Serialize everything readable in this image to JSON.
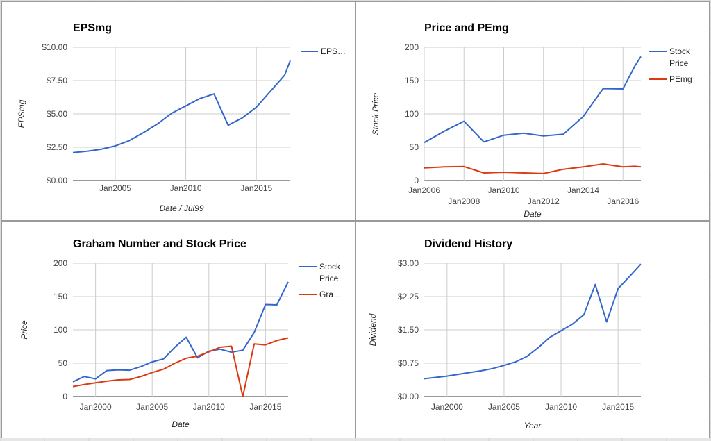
{
  "colors": {
    "blue": "#3366cc",
    "red": "#dc3912",
    "grid": "#cccccc",
    "axis": "#333333"
  },
  "chart_data": [
    {
      "type": "line",
      "title": "EPSmg",
      "xlabel": "Date / Jul99",
      "ylabel": "EPSmg",
      "xlim": [
        2002.0,
        2017.4
      ],
      "ylim": [
        0,
        10
      ],
      "y_ticks": [
        0,
        2.5,
        5,
        7.5,
        10
      ],
      "y_tick_labels": [
        "$0.00",
        "$2.50",
        "$5.00",
        "$7.50",
        "$10.00"
      ],
      "x_ticks": [
        2005,
        2010,
        2015
      ],
      "x_tick_labels": [
        "Jan2005",
        "Jan2010",
        "Jan2015"
      ],
      "legend": "right",
      "series": [
        {
          "name": "EPS…",
          "color": "#3366cc",
          "x": [
            2002,
            2003,
            2004,
            2005,
            2006,
            2007,
            2008,
            2009,
            2010,
            2011,
            2012,
            2013,
            2014,
            2015,
            2016,
            2017,
            2017.4
          ],
          "y": [
            2.1,
            2.2,
            2.35,
            2.6,
            3.0,
            3.6,
            4.25,
            5.05,
            5.6,
            6.15,
            6.5,
            4.15,
            4.7,
            5.5,
            6.7,
            7.9,
            9.0
          ]
        }
      ]
    },
    {
      "type": "line",
      "title": "Price and PEmg",
      "xlabel": "Date",
      "ylabel": "Stock Price",
      "xlim": [
        2006.0,
        2016.9
      ],
      "ylim": [
        0,
        200
      ],
      "y_ticks": [
        0,
        50,
        100,
        150,
        200
      ],
      "y_tick_labels": [
        "0",
        "50",
        "100",
        "150",
        "200"
      ],
      "x_ticks": [
        2006,
        2008,
        2010,
        2012,
        2014,
        2016
      ],
      "x_tick_labels": [
        "Jan2006",
        "Jan2008",
        "Jan2010",
        "Jan2012",
        "Jan2014",
        "Jan2016"
      ],
      "legend": "right",
      "series": [
        {
          "name": "Stock Price",
          "color": "#3366cc",
          "x": [
            2006,
            2007,
            2008,
            2009,
            2010,
            2011,
            2012,
            2013,
            2014,
            2015,
            2016,
            2016.6,
            2016.9
          ],
          "y": [
            57,
            74,
            89,
            58,
            68,
            71,
            67,
            69.5,
            96,
            138,
            137.5,
            172,
            186
          ]
        },
        {
          "name": "PEmg",
          "color": "#dc3912",
          "x": [
            2006,
            2007,
            2008,
            2009,
            2010,
            2011,
            2012,
            2013,
            2014,
            2015,
            2016,
            2016.6,
            2016.9
          ],
          "y": [
            19,
            20.5,
            21,
            11.5,
            12.5,
            11.5,
            10.5,
            17,
            20.5,
            25,
            20.5,
            21.5,
            20.5
          ]
        }
      ]
    },
    {
      "type": "line",
      "title": "Graham Number and Stock Price",
      "xlabel": "Date",
      "ylabel": "Price",
      "xlim": [
        1998.0,
        2017.0
      ],
      "ylim": [
        0,
        200
      ],
      "y_ticks": [
        0,
        50,
        100,
        150,
        200
      ],
      "y_tick_labels": [
        "0",
        "50",
        "100",
        "150",
        "200"
      ],
      "x_ticks": [
        2000,
        2005,
        2010,
        2015
      ],
      "x_tick_labels": [
        "Jan2000",
        "Jan2005",
        "Jan2010",
        "Jan2015"
      ],
      "legend": "right",
      "series": [
        {
          "name": "Stock Price",
          "color": "#3366cc",
          "x": [
            1998,
            1999,
            2000,
            2001,
            2002,
            2003,
            2004,
            2005,
            2006,
            2007,
            2008,
            2009,
            2010,
            2011,
            2012,
            2013,
            2014,
            2015,
            2016,
            2017
          ],
          "y": [
            22,
            30,
            26.5,
            39,
            40,
            39.5,
            45,
            52,
            56.5,
            74,
            89,
            58,
            68,
            71,
            66.5,
            69.5,
            96,
            138,
            137.5,
            172
          ]
        },
        {
          "name": "Gra…",
          "color": "#dc3912",
          "x": [
            1998,
            1999,
            2000,
            2001,
            2002,
            2003,
            2004,
            2005,
            2006,
            2007,
            2008,
            2009,
            2010,
            2011,
            2012,
            2013,
            2014,
            2015,
            2016,
            2017
          ],
          "y": [
            15,
            18,
            20.5,
            23,
            25,
            25.5,
            30,
            36,
            41,
            50,
            57.5,
            60.5,
            67,
            74,
            75.5,
            0,
            79,
            77.5,
            84,
            88
          ]
        }
      ]
    },
    {
      "type": "line",
      "title": "Dividend History",
      "xlabel": "Year",
      "ylabel": "Dividend",
      "xlim": [
        1998.0,
        2017.0
      ],
      "ylim": [
        0,
        3
      ],
      "y_ticks": [
        0,
        0.75,
        1.5,
        2.25,
        3
      ],
      "y_tick_labels": [
        "$0.00",
        "$0.75",
        "$1.50",
        "$2.25",
        "$3.00"
      ],
      "x_ticks": [
        2000,
        2005,
        2010,
        2015
      ],
      "x_tick_labels": [
        "Jan2000",
        "Jan2005",
        "Jan2010",
        "Jan2015"
      ],
      "legend": "none",
      "series": [
        {
          "color": "#3366cc",
          "x": [
            1998,
            1999,
            2000,
            2001,
            2002,
            2003,
            2004,
            2005,
            2006,
            2007,
            2008,
            2009,
            2010,
            2011,
            2012,
            2013,
            2014,
            2015,
            2016,
            2017
          ],
          "y": [
            0.4,
            0.43,
            0.46,
            0.5,
            0.54,
            0.58,
            0.63,
            0.7,
            0.78,
            0.9,
            1.1,
            1.33,
            1.48,
            1.63,
            1.84,
            2.52,
            1.68,
            2.43,
            2.7,
            2.98
          ]
        }
      ]
    }
  ]
}
